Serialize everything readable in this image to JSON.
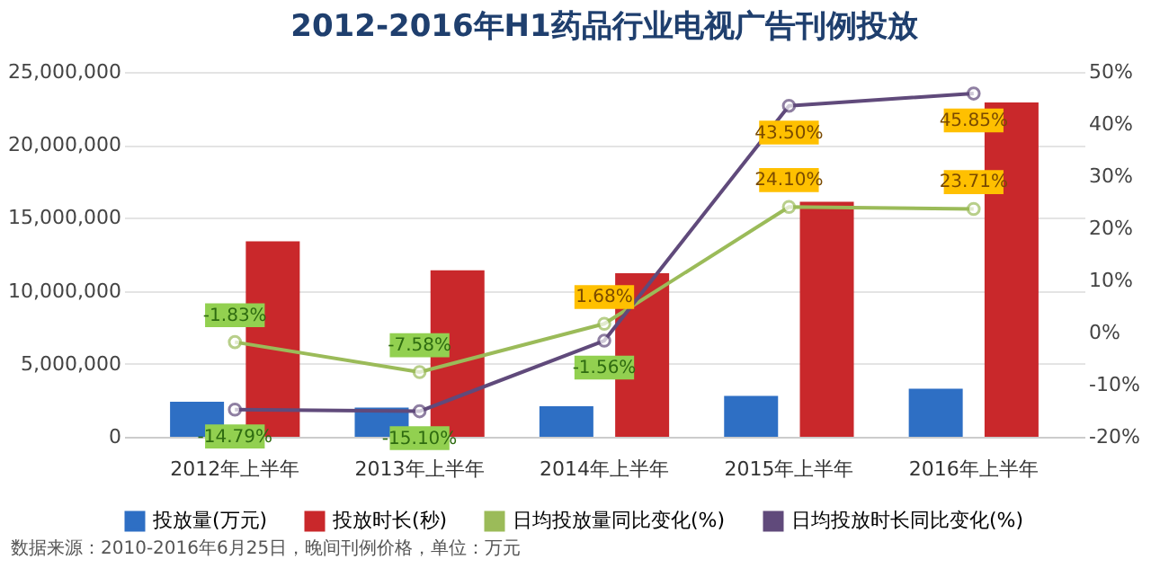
{
  "chart_data": {
    "type": "bar",
    "title": "2012-2016年H1药品行业电视广告刊例投放",
    "categories": [
      "2012年上半年",
      "2013年上半年",
      "2014年上半年",
      "2015年上半年",
      "2016年上半年"
    ],
    "series": [
      {
        "name": "投放量(万元)",
        "color": "#2e6fc4",
        "values": [
          2400000,
          2000000,
          2100000,
          2800000,
          3300000
        ]
      },
      {
        "name": "投放时长(秒)",
        "color": "#c9282b",
        "values": [
          13400000,
          11400000,
          11200000,
          16100000,
          22900000
        ]
      },
      {
        "name": "日均投放量同比变化(%)",
        "type": "line",
        "axis": "y2",
        "color": "#9bbb59",
        "values": [
          -1.83,
          -7.58,
          1.68,
          24.1,
          23.71
        ],
        "value_labels": [
          "-1.83%",
          "-7.58%",
          "1.68%",
          "24.10%",
          "23.71%"
        ]
      },
      {
        "name": "日均投放时长同比变化(%)",
        "type": "line",
        "axis": "y2",
        "color": "#604a7b",
        "values": [
          -14.79,
          -15.1,
          -1.56,
          43.5,
          45.85
        ],
        "value_labels": [
          "-14.79%",
          "-15.10%",
          "-1.56%",
          "43.50%",
          "45.85%"
        ]
      }
    ],
    "ylim": [
      0,
      25000000
    ],
    "yticks": [
      {
        "value": 0,
        "label": "0"
      },
      {
        "value": 5000000,
        "label": "5,000,000"
      },
      {
        "value": 10000000,
        "label": "10,000,000"
      },
      {
        "value": 15000000,
        "label": "15,000,000"
      },
      {
        "value": 20000000,
        "label": "20,000,000"
      },
      {
        "value": 25000000,
        "label": "25,000,000"
      }
    ],
    "y2lim": [
      -20,
      50
    ],
    "y2ticks": [
      {
        "value": -20,
        "label": "-20%"
      },
      {
        "value": -10,
        "label": "-10%"
      },
      {
        "value": 0,
        "label": "0%"
      },
      {
        "value": 10,
        "label": "10%"
      },
      {
        "value": 20,
        "label": "20%"
      },
      {
        "value": 30,
        "label": "30%"
      },
      {
        "value": 40,
        "label": "40%"
      },
      {
        "value": 50,
        "label": "50%"
      }
    ],
    "grid": "y",
    "legend": "bottom",
    "marker": "circle",
    "annotations": [
      "数据来源：2010-2016年6月25日，晚间刊例价格，单位：万元"
    ]
  }
}
